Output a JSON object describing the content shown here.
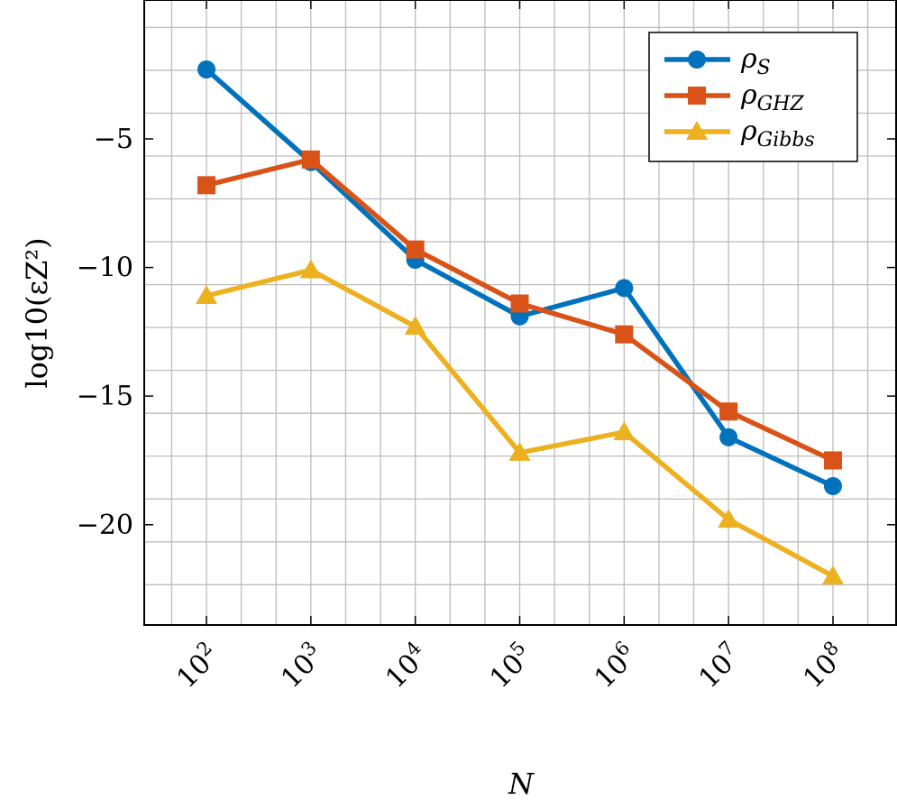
{
  "chart_data": {
    "type": "line",
    "xlabel": "N",
    "ylabel": "log10(εZ²)",
    "x_scale": "log",
    "x": [
      100,
      1000,
      10000,
      100000,
      1000000,
      10000000,
      100000000
    ],
    "x_tick_labels": [
      {
        "base": "10",
        "exp": "2"
      },
      {
        "base": "10",
        "exp": "3"
      },
      {
        "base": "10",
        "exp": "4"
      },
      {
        "base": "10",
        "exp": "5"
      },
      {
        "base": "10",
        "exp": "6"
      },
      {
        "base": "10",
        "exp": "7"
      },
      {
        "base": "10",
        "exp": "8"
      }
    ],
    "y_ticks": [
      -5,
      -10,
      -15,
      -20
    ],
    "y_tick_labels": [
      "−5",
      "−10",
      "−15",
      "−20"
    ],
    "ylim": [
      -23.9,
      0.4
    ],
    "grid": true,
    "legend_position": "top-right",
    "series": [
      {
        "name": "ρS",
        "name_base": "ρ",
        "name_sub": "S",
        "color": "#0072BD",
        "marker": "circle",
        "values": [
          -2.3,
          -5.9,
          -9.7,
          -11.9,
          -10.8,
          -16.6,
          -18.5
        ]
      },
      {
        "name": "ρGHZ",
        "name_base": "ρ",
        "name_sub": "GHZ",
        "color": "#D95319",
        "marker": "square",
        "values": [
          -6.8,
          -5.8,
          -9.3,
          -11.4,
          -12.6,
          -15.6,
          -17.5
        ]
      },
      {
        "name": "ρGibbs",
        "name_base": "ρ",
        "name_sub": "Gibbs",
        "color": "#EDB120",
        "marker": "triangle",
        "values": [
          -11.1,
          -10.1,
          -12.3,
          -17.2,
          -16.4,
          -19.8,
          -22.0
        ]
      }
    ]
  }
}
